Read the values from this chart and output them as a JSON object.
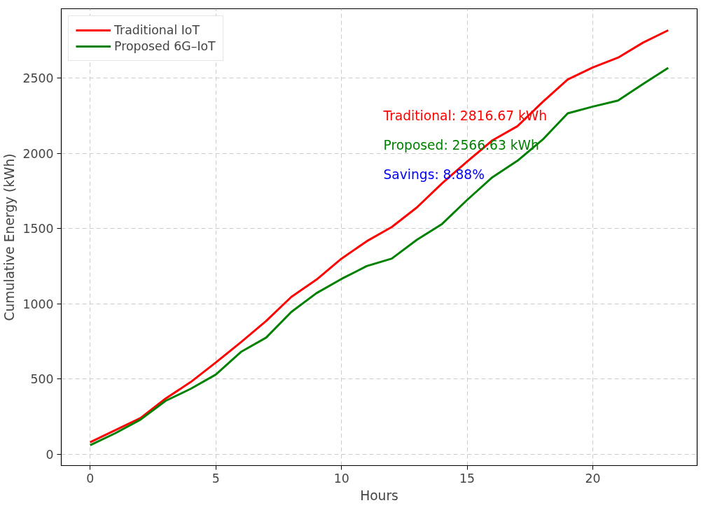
{
  "chart_data": {
    "type": "line",
    "xlabel": "Hours",
    "ylabel": "Cumulative Energy (kWh)",
    "x": [
      0,
      1,
      2,
      3,
      4,
      5,
      6,
      7,
      8,
      9,
      10,
      11,
      12,
      13,
      14,
      15,
      16,
      17,
      18,
      19,
      20,
      21,
      22,
      23
    ],
    "series": [
      {
        "name": "Traditional IoT",
        "color": "#ff0000",
        "values": [
          80,
          160,
          240,
          370,
          480,
          610,
          745,
          885,
          1045,
          1160,
          1300,
          1415,
          1510,
          1640,
          1800,
          1945,
          2085,
          2180,
          2340,
          2490,
          2570,
          2635,
          2735,
          2817
        ]
      },
      {
        "name": "Proposed 6G–IoT",
        "color": "#008000",
        "values": [
          60,
          140,
          230,
          355,
          435,
          530,
          680,
          775,
          945,
          1070,
          1165,
          1250,
          1300,
          1425,
          1530,
          1690,
          1840,
          1950,
          2090,
          2265,
          2310,
          2350,
          2460,
          2567
        ]
      }
    ],
    "annotations": [
      "Traditional: 2816.67 kWh",
      "Proposed: 2566.63 kWh",
      "Savings: 8.88%"
    ],
    "xlim": [
      -1.15,
      24.15
    ],
    "ylim": [
      -75,
      2960
    ],
    "xticks": [
      0,
      5,
      10,
      15,
      20
    ],
    "yticks": [
      0,
      500,
      1000,
      1500,
      2000,
      2500
    ],
    "grid": true,
    "legend": "top left",
    "line_style": "solid",
    "marker": "none"
  }
}
